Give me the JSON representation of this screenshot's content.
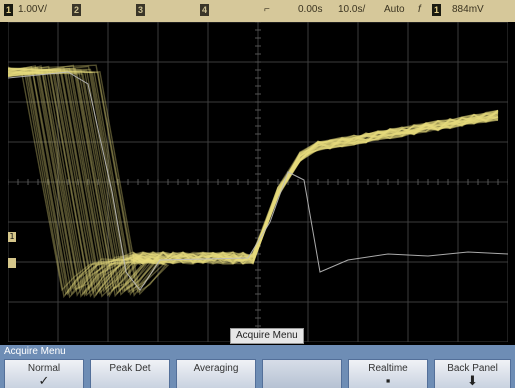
{
  "status_bar": {
    "ch1_label": "1",
    "scale": "1.00V/",
    "ch2_label": "2",
    "ch3_label": "3",
    "ch4_label": "4",
    "delay": "0.00s",
    "timebase": "10.0s/",
    "trigger_mode": "Auto",
    "trigger_symbol": "f",
    "trigger_channel": "1",
    "trigger_level": "884",
    "trigger_level_unit": "mV"
  },
  "screen": {
    "ground_marker": "1",
    "popup_label": "Acquire Menu",
    "trace_color": "#e9dd7f"
  },
  "menu": {
    "title": "Acquire Menu",
    "keys": [
      {
        "label": "Normal",
        "glyph": "✓"
      },
      {
        "label": "Peak Det",
        "glyph": ""
      },
      {
        "label": "Averaging",
        "glyph": ""
      },
      {
        "label": "",
        "glyph": ""
      },
      {
        "label": "Realtime",
        "glyph": "▪"
      },
      {
        "label": "Back Panel",
        "glyph": "⬇"
      }
    ]
  }
}
